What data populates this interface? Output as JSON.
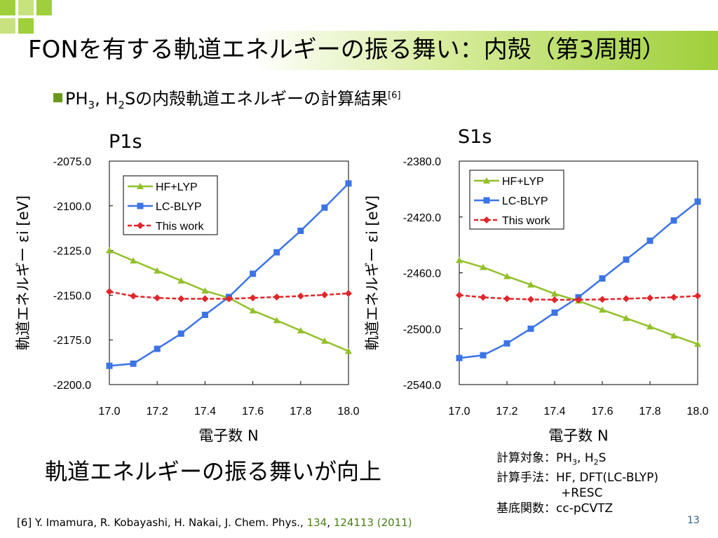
{
  "slide": {
    "title": "FONを有する軌道エネルギーの振る舞い：内殻（第3周期）",
    "bullet": {
      "prefix": "PH",
      "sub1": "3",
      "mid1": ", H",
      "sub2": "2",
      "rest": "Sの内殻軌道エネルギーの計算結果",
      "citation": "[6]"
    },
    "conclusion": "軌道エネルギーの振る舞いが向上",
    "calc": {
      "target_label": "計算対象：",
      "target_a": "PH",
      "target_a_sub": "3",
      "target_b": ", H",
      "target_b_sub": "2",
      "target_c": "S",
      "method_label": "計算手法：",
      "method": "HF, DFT(LC-BLYP)",
      "method_cont": "+RESC",
      "basis_label": "基底関数：",
      "basis": "cc-pCVTZ"
    },
    "reference": {
      "pre": "[6] Y. Imamura, R. Kobayashi, H. Nakai, J. Chem. Phys., ",
      "vol": "134",
      "sep": ", ",
      "pages": "124113 (2011)"
    },
    "page_number": "13"
  },
  "colors": {
    "hf": "#92c02a",
    "lc": "#3a74e6",
    "this": "#e0262a",
    "accent": "#6a9a1f"
  },
  "chart_data": [
    {
      "type": "line",
      "title": "P1s",
      "xlabel": "電子数 N",
      "ylabel": "軌道エネルギー εi [eV]",
      "xlim": [
        17.0,
        18.0
      ],
      "ylim": [
        -2200.0,
        -2075.0
      ],
      "x_ticks": [
        "17.0",
        "17.2",
        "17.4",
        "17.6",
        "17.8",
        "18.0"
      ],
      "y_ticks": [
        "-2075.0",
        "-2100.0",
        "-2125.0",
        "-2150.0",
        "-2175.0",
        "-2200.0"
      ],
      "legend_position": "top-left",
      "x": [
        17.0,
        17.1,
        17.2,
        17.3,
        17.4,
        17.5,
        17.6,
        17.7,
        17.8,
        17.9,
        18.0
      ],
      "series": [
        {
          "name": "HF+LYP",
          "color": "#92c02a",
          "marker": "triangle",
          "values": [
            -2125.0,
            -2130.7,
            -2136.3,
            -2141.9,
            -2147.5,
            -2151.5,
            -2158.6,
            -2164.1,
            -2169.8,
            -2175.6,
            -2181.3
          ]
        },
        {
          "name": "LC-BLYP",
          "color": "#3a74e6",
          "marker": "square",
          "values": [
            -2189.5,
            -2188.3,
            -2180.0,
            -2171.5,
            -2161.0,
            -2151.0,
            -2138.0,
            -2126.0,
            -2114.0,
            -2101.0,
            -2087.5
          ]
        },
        {
          "name": "This work",
          "color": "#e0262a",
          "marker": "diamond",
          "values": [
            -2148.0,
            -2150.5,
            -2151.5,
            -2152.0,
            -2152.0,
            -2152.0,
            -2151.5,
            -2151.0,
            -2150.5,
            -2149.8,
            -2149.0
          ]
        }
      ]
    },
    {
      "type": "line",
      "title": "S1s",
      "xlabel": "電子数 N",
      "ylabel": "軌道エネルギー εi [eV]",
      "xlim": [
        17.0,
        18.0
      ],
      "ylim": [
        -2540.0,
        -2380.0
      ],
      "x_ticks": [
        "17.0",
        "17.2",
        "17.4",
        "17.6",
        "17.8",
        "18.0"
      ],
      "y_ticks": [
        "-2380.0",
        "-2420.0",
        "-2460.0",
        "-2500.0",
        "-2540.0"
      ],
      "legend_position": "top-left",
      "x": [
        17.0,
        17.1,
        17.2,
        17.3,
        17.4,
        17.5,
        17.6,
        17.7,
        17.8,
        17.9,
        18.0
      ],
      "series": [
        {
          "name": "HF+LYP",
          "color": "#92c02a",
          "marker": "triangle",
          "values": [
            -2451.0,
            -2456.0,
            -2462.5,
            -2468.5,
            -2475.0,
            -2480.0,
            -2486.5,
            -2492.5,
            -2498.5,
            -2505.0,
            -2511.0
          ]
        },
        {
          "name": "LC-BLYP",
          "color": "#3a74e6",
          "marker": "square",
          "values": [
            -2521.0,
            -2519.0,
            -2510.5,
            -2500.0,
            -2488.5,
            -2477.5,
            -2464.0,
            -2450.5,
            -2437.0,
            -2422.5,
            -2409.0
          ]
        },
        {
          "name": "This work",
          "color": "#e0262a",
          "marker": "diamond",
          "values": [
            -2476.0,
            -2477.5,
            -2478.5,
            -2479.0,
            -2479.3,
            -2479.3,
            -2479.0,
            -2478.5,
            -2478.0,
            -2477.5,
            -2476.5
          ]
        }
      ]
    }
  ]
}
